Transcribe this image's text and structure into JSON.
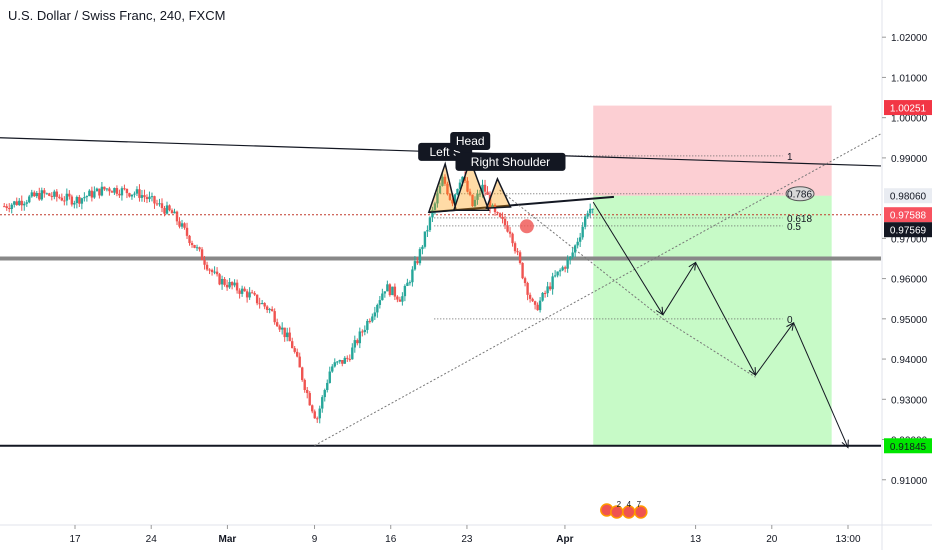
{
  "chart_data": {
    "type": "candlestick",
    "title": "U.S. Dollar / Swiss Franc, 240, FXCM",
    "y_range": [
      0.9,
      1.028
    ],
    "y_ticks": [
      {
        "value": 1.02,
        "label": "1.02000"
      },
      {
        "value": 1.01,
        "label": "1.01000"
      },
      {
        "value": 1.0,
        "label": "1.00000"
      },
      {
        "value": 0.99,
        "label": "0.99000"
      },
      {
        "value": 0.97,
        "label": "0.97000"
      },
      {
        "value": 0.96,
        "label": "0.96000"
      },
      {
        "value": 0.95,
        "label": "0.95000"
      },
      {
        "value": 0.94,
        "label": "0.94000"
      },
      {
        "value": 0.93,
        "label": "0.93000"
      },
      {
        "value": 0.92,
        "label": "0.92000"
      },
      {
        "value": 0.91,
        "label": "0.91000"
      }
    ],
    "x_ticks": [
      {
        "label": "17",
        "day": 17
      },
      {
        "label": "24",
        "day": 24
      },
      {
        "label": "Mar",
        "day": 31
      },
      {
        "label": "9",
        "day": 39
      },
      {
        "label": "16",
        "day": 46
      },
      {
        "label": "23",
        "day": 53
      },
      {
        "label": "Apr",
        "day": 62
      },
      {
        "label": "13",
        "day": 74
      },
      {
        "label": "20",
        "day": 81
      },
      {
        "label": "13:00",
        "day": 88
      }
    ],
    "price_tags": [
      {
        "value": 1.00251,
        "label": "1.00251",
        "color": "#f23645",
        "text_color": "#ffffff"
      },
      {
        "value": 0.9806,
        "label": "0.98060",
        "color": "#e9ecf2",
        "text_color": "#131722"
      },
      {
        "value": 0.97588,
        "label": "0.97588",
        "color": "#f7525f",
        "text_color": "#ffffff"
      },
      {
        "value": 0.97569,
        "label": "0.97569",
        "color": "#131722",
        "text_color": "#ffffff"
      },
      {
        "value": 0.91845,
        "label": "0.91845",
        "color": "#00e600",
        "text_color": "#131722"
      }
    ],
    "waypoints": [
      {
        "day": 10.5,
        "price": 0.978
      },
      {
        "day": 14,
        "price": 0.981
      },
      {
        "day": 17,
        "price": 0.9795
      },
      {
        "day": 20,
        "price": 0.9825
      },
      {
        "day": 23,
        "price": 0.981
      },
      {
        "day": 26,
        "price": 0.976
      },
      {
        "day": 28,
        "price": 0.968
      },
      {
        "day": 30,
        "price": 0.96
      },
      {
        "day": 33,
        "price": 0.956
      },
      {
        "day": 35,
        "price": 0.952
      },
      {
        "day": 37,
        "price": 0.943
      },
      {
        "day": 38.5,
        "price": 0.93
      },
      {
        "day": 39.2,
        "price": 0.925
      },
      {
        "day": 40.5,
        "price": 0.938
      },
      {
        "day": 42,
        "price": 0.94
      },
      {
        "day": 44,
        "price": 0.95
      },
      {
        "day": 45.5,
        "price": 0.958
      },
      {
        "day": 47,
        "price": 0.955
      },
      {
        "day": 48.5,
        "price": 0.965
      },
      {
        "day": 50,
        "price": 0.978
      },
      {
        "day": 50.8,
        "price": 0.985
      },
      {
        "day": 51.6,
        "price": 0.979
      },
      {
        "day": 52.5,
        "price": 0.986
      },
      {
        "day": 53.5,
        "price": 0.978
      },
      {
        "day": 54.5,
        "price": 0.983
      },
      {
        "day": 55.5,
        "price": 0.976
      },
      {
        "day": 57,
        "price": 0.972
      },
      {
        "day": 58,
        "price": 0.962
      },
      {
        "day": 59.2,
        "price": 0.952
      },
      {
        "day": 61,
        "price": 0.96
      },
      {
        "day": 62.5,
        "price": 0.965
      },
      {
        "day": 63.5,
        "price": 0.972
      },
      {
        "day": 64.2,
        "price": 0.978
      },
      {
        "day": 64.6,
        "price": 0.976
      }
    ],
    "trend_lines": [
      {
        "p1": {
          "day": 10.5,
          "price": 0.995
        },
        "p2": {
          "day": 88,
          "price": 0.988
        },
        "color": "#131722",
        "width": 1.2,
        "dash": ""
      },
      {
        "p1": {
          "day": 49.5,
          "price": 0.9765
        },
        "p2": {
          "day": 66.5,
          "price": 0.9803
        },
        "color": "#131722",
        "width": 2,
        "dash": ""
      },
      {
        "p1": {
          "day": 10.5,
          "price": 0.97588
        },
        "p2": {
          "day": 88,
          "price": 0.97588
        },
        "color": "#c0392b",
        "width": 1,
        "dash": "2,2"
      },
      {
        "p1": {
          "day": 10.5,
          "price": 0.965
        },
        "p2": {
          "day": 88,
          "price": 0.965
        },
        "color": "#888888",
        "width": 4,
        "dash": ""
      },
      {
        "p1": {
          "day": 10.5,
          "price": 0.91845
        },
        "p2": {
          "day": 88,
          "price": 0.91845
        },
        "color": "#131722",
        "width": 2,
        "dash": ""
      },
      {
        "p1": {
          "day": 39,
          "price": 0.9185
        },
        "p2": {
          "day": 88,
          "price": 0.996
        },
        "color": "#777777",
        "width": 1,
        "dash": "2,2"
      },
      {
        "p1": {
          "day": 56,
          "price": 0.982
        },
        "p2": {
          "day": 71,
          "price": 0.95
        },
        "color": "#777777",
        "width": 1,
        "dash": "2,2"
      },
      {
        "p1": {
          "day": 71,
          "price": 0.95
        },
        "p2": {
          "day": 79.5,
          "price": 0.9355
        },
        "color": "#777777",
        "width": 1,
        "dash": "2,2"
      }
    ],
    "fib_levels": [
      {
        "label": "1",
        "price": 0.9905
      },
      {
        "label": "0.786",
        "price": 0.9811
      },
      {
        "label": "0.618",
        "price": 0.9751
      },
      {
        "label": "0.5",
        "price": 0.9731
      },
      {
        "label": "0",
        "price": 0.95
      }
    ],
    "fib_x_range": {
      "start_day": 50,
      "end_day": 82,
      "label_day": 82.4
    },
    "position_zones": {
      "start_day": 64.6,
      "end_day": 86.5,
      "entry": 0.9806,
      "stop": 1.003,
      "target": 0.91845,
      "stop_color": "rgba(242,54,69,0.24)",
      "target_color": "rgba(0,230,0,0.22)"
    },
    "arrow_path": [
      {
        "day": 64.6,
        "price": 0.979
      },
      {
        "day": 71,
        "price": 0.951
      },
      {
        "day": 74,
        "price": 0.964
      },
      {
        "day": 79.5,
        "price": 0.936
      },
      {
        "day": 83,
        "price": 0.949
      },
      {
        "day": 88,
        "price": 0.918
      }
    ],
    "pattern_triangles": [
      {
        "points": [
          {
            "day": 49.5,
            "price": 0.9765
          },
          {
            "day": 51,
            "price": 0.9885
          },
          {
            "day": 52,
            "price": 0.977
          }
        ]
      },
      {
        "points": [
          {
            "day": 51.8,
            "price": 0.977
          },
          {
            "day": 53.3,
            "price": 0.9895
          },
          {
            "day": 55,
            "price": 0.977
          }
        ]
      },
      {
        "points": [
          {
            "day": 54.8,
            "price": 0.9775
          },
          {
            "day": 55.8,
            "price": 0.9848
          },
          {
            "day": 57,
            "price": 0.9778
          }
        ]
      }
    ],
    "pattern_labels": [
      {
        "text": "Left S",
        "day": 51,
        "price": 0.9915
      },
      {
        "text": "Head",
        "day": 53.3,
        "price": 0.9942
      },
      {
        "text": "Right Shoulder",
        "day": 57,
        "price": 0.989
      }
    ],
    "signal_dot": {
      "day": 58.5,
      "price": 0.973,
      "color": "#ef5350"
    },
    "badge_dates": [
      "2",
      "4",
      "7"
    ]
  }
}
